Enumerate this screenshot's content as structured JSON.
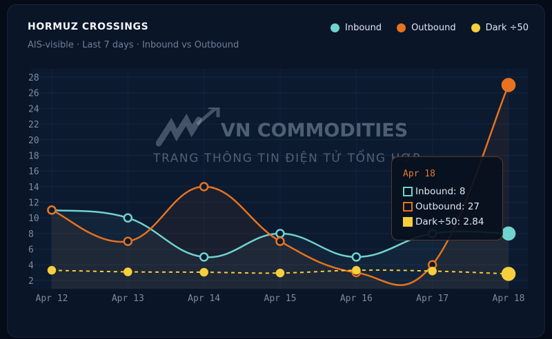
{
  "header": {
    "title": "HORMUZ CROSSINGS",
    "subtitle": "AIS-visible · Last 7 days · Inbound vs Outbound"
  },
  "watermark": {
    "name": "VN COMMODITIES",
    "tagline": "TRANG THÔNG TIN ĐIỆN TỬ TỔNG HỢP"
  },
  "tooltip": {
    "date": "Apr 18",
    "rows": [
      "Inbound: 8",
      "Outbound: 27",
      "Dark÷50: 2.84"
    ]
  },
  "chart_data": {
    "type": "line",
    "categories": [
      "Apr 12",
      "Apr 13",
      "Apr 14",
      "Apr 15",
      "Apr 16",
      "Apr 17",
      "Apr 18"
    ],
    "ylim": [
      2,
      28
    ],
    "yticks": [
      2,
      4,
      6,
      8,
      10,
      12,
      14,
      16,
      18,
      20,
      22,
      24,
      26,
      28
    ],
    "grid": true,
    "legend_position": "top-right",
    "series": [
      {
        "name": "Inbound",
        "color": "#6fd3cf",
        "values": [
          11,
          10,
          5,
          8,
          5,
          8,
          8
        ]
      },
      {
        "name": "Outbound",
        "color": "#e8731f",
        "values": [
          11,
          7,
          14,
          7,
          3,
          4,
          27
        ]
      },
      {
        "name": "Dark ÷50",
        "color": "#f6cf3c",
        "dashed": true,
        "values": [
          3.3,
          3.1,
          3.05,
          2.95,
          3.3,
          3.2,
          2.84
        ]
      }
    ]
  }
}
